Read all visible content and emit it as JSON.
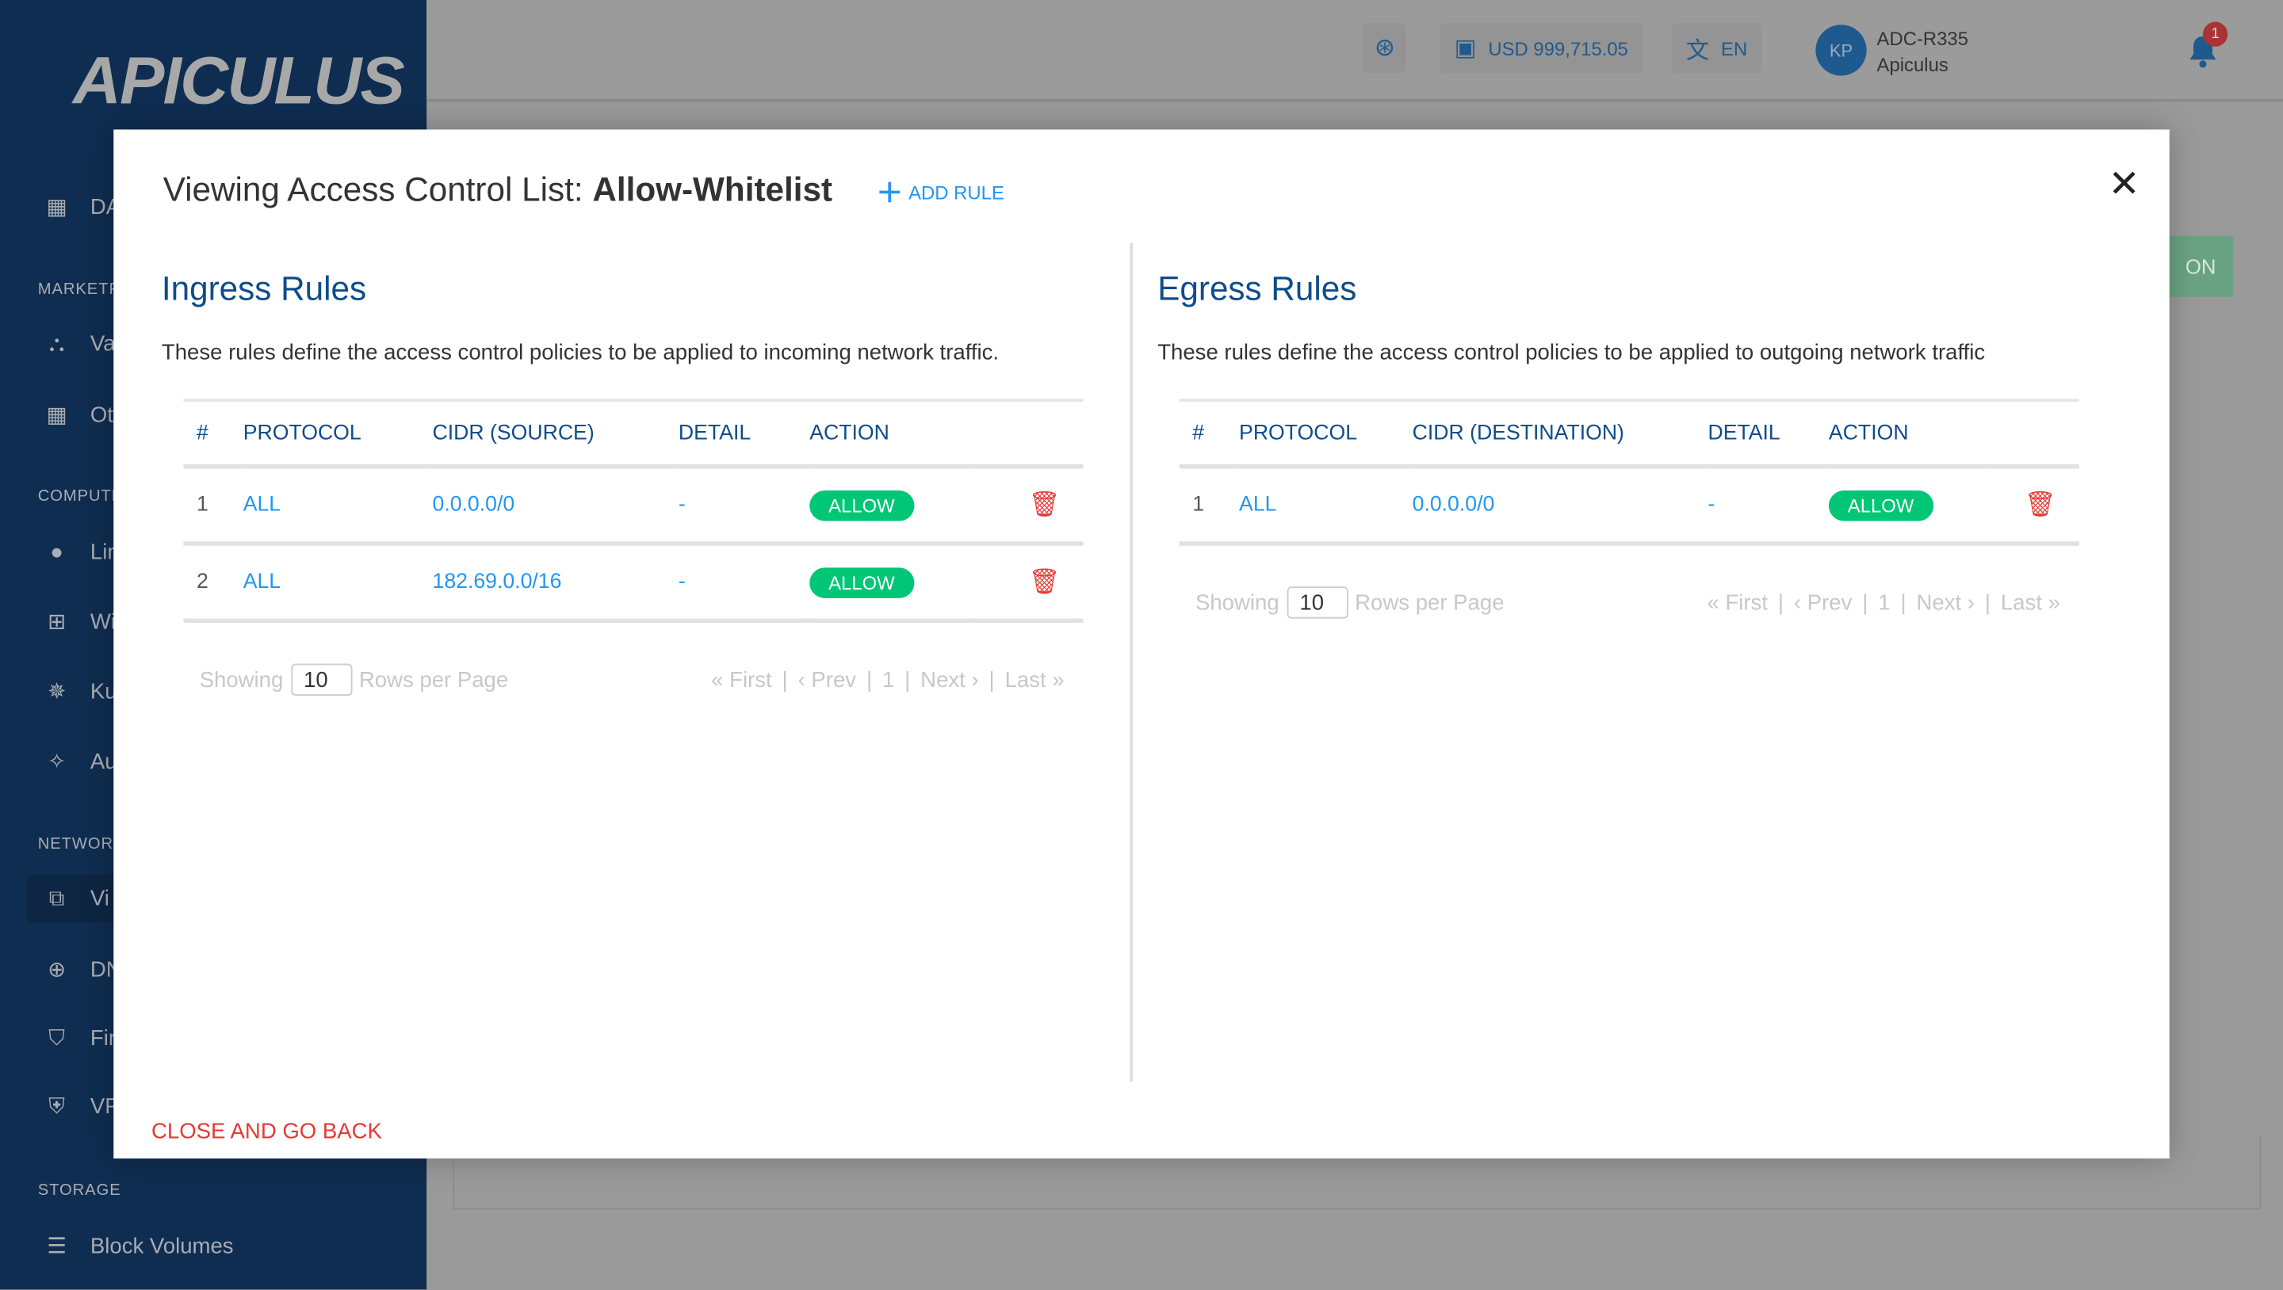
{
  "brand": {
    "logo": "APICULUS"
  },
  "sidebar": {
    "items": [
      {
        "type": "item",
        "icon": "dashboard-icon",
        "label": "DA"
      },
      {
        "type": "section",
        "label": "MARKETPL"
      },
      {
        "type": "item",
        "icon": "shapes-icon",
        "label": "Va"
      },
      {
        "type": "item",
        "icon": "apps-grid-icon",
        "label": "Ot"
      },
      {
        "type": "section",
        "label": "COMPUTE"
      },
      {
        "type": "item",
        "icon": "linux-icon",
        "label": "Lin"
      },
      {
        "type": "item",
        "icon": "windows-icon",
        "label": "Wi"
      },
      {
        "type": "item",
        "icon": "kubernetes-icon",
        "label": "Ku"
      },
      {
        "type": "item",
        "icon": "magic-wand-icon",
        "label": "Au"
      },
      {
        "type": "section",
        "label": "NETWORK"
      },
      {
        "type": "item",
        "icon": "network-icon",
        "label": "Vi",
        "active": true
      },
      {
        "type": "item",
        "icon": "globe-icon",
        "label": "DN"
      },
      {
        "type": "item",
        "icon": "firewall-icon",
        "label": "Fir"
      },
      {
        "type": "item",
        "icon": "vpn-shield-icon",
        "label": "VP"
      },
      {
        "type": "section",
        "label": "STORAGE"
      },
      {
        "type": "item",
        "icon": "block-volumes-icon",
        "label": "Block Volumes"
      }
    ]
  },
  "topbar": {
    "balance": "USD 999,715.05",
    "language": "EN",
    "avatar_initials": "KP",
    "account": "ADC-R335",
    "org": "Apiculus",
    "notifications": "1"
  },
  "background": {
    "button_fragment": "ON"
  },
  "modal": {
    "title_prefix": "Viewing Access Control List:",
    "title_name": "Allow-Whitelist",
    "add_rule": "ADD RULE",
    "close_back": "CLOSE AND GO BACK",
    "ingress": {
      "title": "Ingress Rules",
      "description": "These rules define the access control policies to be applied to incoming network traffic.",
      "columns": [
        "#",
        "PROTOCOL",
        "CIDR (SOURCE)",
        "DETAIL",
        "ACTION"
      ],
      "rows": [
        {
          "num": "1",
          "protocol": "ALL",
          "cidr": "0.0.0.0/0",
          "detail": "-",
          "action": "ALLOW"
        },
        {
          "num": "2",
          "protocol": "ALL",
          "cidr": "182.69.0.0/16",
          "detail": "-",
          "action": "ALLOW"
        }
      ],
      "pager": {
        "showing": "Showing",
        "rows": "10",
        "rows_label": "Rows per Page",
        "first": "« First",
        "prev": "‹ Prev",
        "page": "1",
        "next": "Next ›",
        "last": "Last »"
      }
    },
    "egress": {
      "title": "Egress Rules",
      "description": "These rules define the access control policies to be applied to outgoing network traffic",
      "columns": [
        "#",
        "PROTOCOL",
        "CIDR (DESTINATION)",
        "DETAIL",
        "ACTION"
      ],
      "rows": [
        {
          "num": "1",
          "protocol": "ALL",
          "cidr": "0.0.0.0/0",
          "detail": "-",
          "action": "ALLOW"
        }
      ],
      "pager": {
        "showing": "Showing",
        "rows": "10",
        "rows_label": "Rows per Page",
        "first": "« First",
        "prev": "‹ Prev",
        "page": "1",
        "next": "Next ›",
        "last": "Last »"
      }
    }
  },
  "colors": {
    "primary": "#0f4c8a",
    "link": "#2196f3",
    "allow": "#00c676",
    "danger": "#e53935",
    "sidebar": "#0f2d50"
  }
}
